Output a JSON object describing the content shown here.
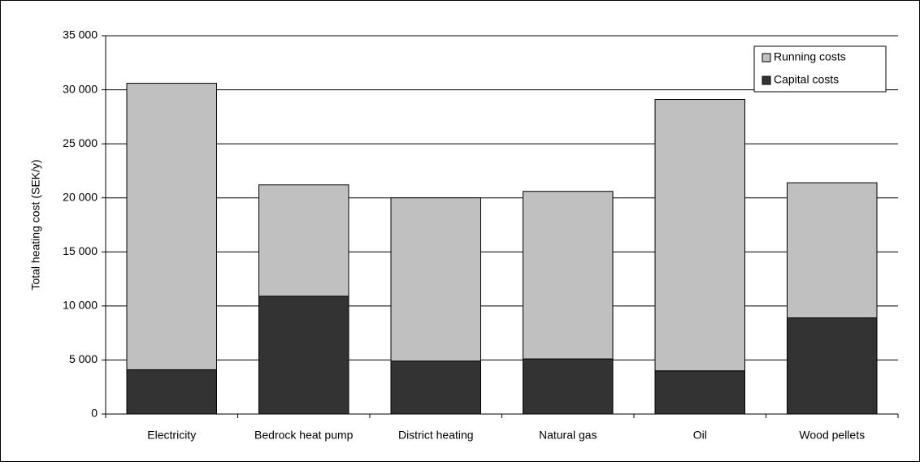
{
  "chart_data": {
    "type": "stacked-bar",
    "y_label": "Total heating cost (SEK/y)",
    "categories": [
      "Electricity",
      "Bedrock heat pump",
      "District heating",
      "Natural gas",
      "Oil",
      "Wood pellets"
    ],
    "series": [
      {
        "name": "Capital costs",
        "color": "#333333",
        "values": [
          4100,
          10900,
          4900,
          5100,
          4000,
          8900
        ]
      },
      {
        "name": "Running costs",
        "color": "#c0c0c0",
        "values": [
          26500,
          10300,
          15100,
          15500,
          25100,
          12500
        ]
      }
    ],
    "ylim": [
      0,
      35000
    ],
    "yticks": [
      0,
      {
        "value": 5000,
        "label": "5 000"
      },
      {
        "value": 10000,
        "label": "10 000"
      },
      {
        "value": 15000,
        "label": "15 000"
      },
      {
        "value": 20000,
        "label": "20 000"
      },
      {
        "value": 25000,
        "label": "25 000"
      },
      {
        "value": 30000,
        "label": "30 000"
      },
      {
        "value": 35000,
        "label": "35 000"
      }
    ],
    "grid": true,
    "legend": "top-right"
  }
}
